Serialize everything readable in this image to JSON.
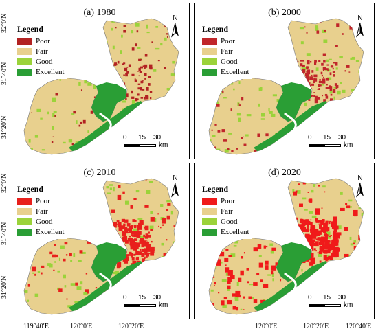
{
  "panels": [
    {
      "id": "a",
      "title": "(a) 1980",
      "legend_title": "Legend",
      "classes": [
        {
          "label": "Poor",
          "color": "#b22222"
        },
        {
          "label": "Fair",
          "color": "#e8d08e"
        },
        {
          "label": "Good",
          "color": "#9bd33a"
        },
        {
          "label": "Excellent",
          "color": "#2a9e35"
        }
      ]
    },
    {
      "id": "b",
      "title": "(b) 2000",
      "legend_title": "Legend",
      "classes": [
        {
          "label": "Poor",
          "color": "#c0262a"
        },
        {
          "label": "Fair",
          "color": "#e8d08e"
        },
        {
          "label": "Good",
          "color": "#9bd33a"
        },
        {
          "label": "Excellent",
          "color": "#2a9e35"
        }
      ]
    },
    {
      "id": "c",
      "title": "(c) 2010",
      "legend_title": "Legend",
      "classes": [
        {
          "label": "Poor",
          "color": "#e8201c"
        },
        {
          "label": "Fair",
          "color": "#e8d08e"
        },
        {
          "label": "Good",
          "color": "#9bd33a"
        },
        {
          "label": "Excellent",
          "color": "#2a9e35"
        }
      ]
    },
    {
      "id": "d",
      "title": "(d) 2020",
      "legend_title": "Legend",
      "classes": [
        {
          "label": "Poor",
          "color": "#f01a1a"
        },
        {
          "label": "Fair",
          "color": "#e8d08e"
        },
        {
          "label": "Good",
          "color": "#9bd33a"
        },
        {
          "label": "Excellent",
          "color": "#2a9e35"
        }
      ]
    }
  ],
  "north_label": "N",
  "scale_bar": {
    "ticks": [
      "0",
      "15",
      "30"
    ],
    "unit": "km"
  },
  "lat_labels": [
    "32°0′N",
    "31°40′N",
    "31°20′N"
  ],
  "lon_labels": [
    "119°40′E",
    "120°0′E",
    "120°20′E",
    "120°40′E"
  ],
  "poor_share_rank": {
    "a": 1,
    "b": 2,
    "c": 3,
    "d": 4
  },
  "water_color": "#ffffff"
}
